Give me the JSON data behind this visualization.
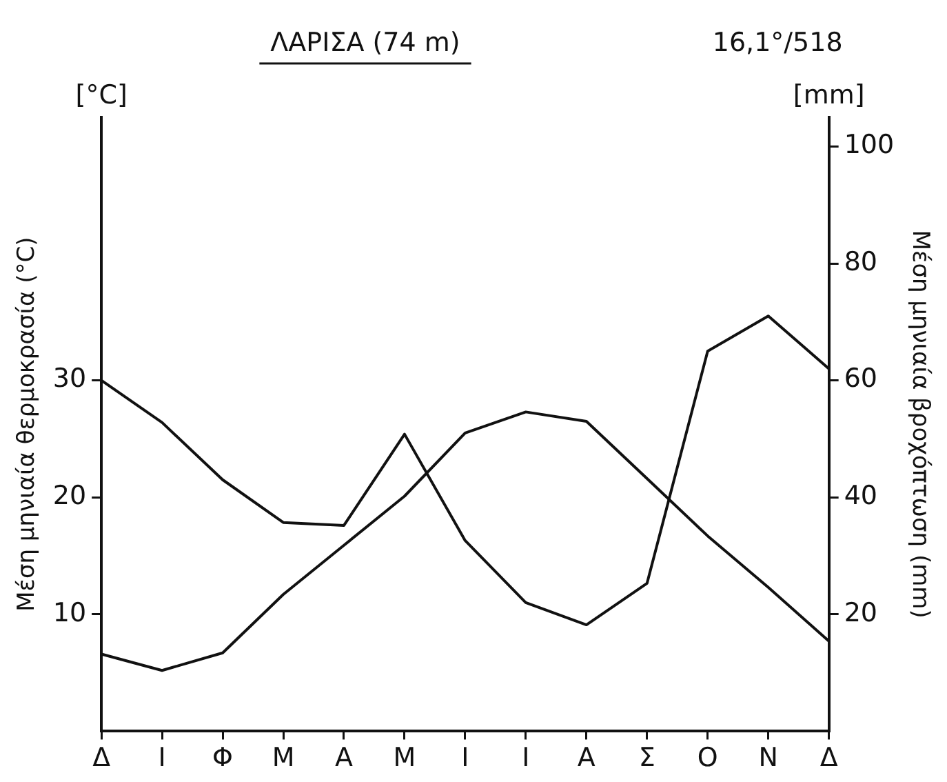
{
  "chart_data": {
    "type": "line",
    "title": "ΛΑΡΙΣΑ (74 m)",
    "ylabel": "Μέση μηνιαία θερμοκρασία (°C)",
    "y2label": "Μέση μηνιαία βροχόπτωση (mm)",
    "annotations": [
      "16,1°/518",
      "[°C]",
      "[mm]"
    ],
    "categories": [
      "Δ",
      "Ι",
      "Φ",
      "Μ",
      "Α",
      "Μ",
      "Ι",
      "Ι",
      "Α",
      "Σ",
      "Ο",
      "Ν",
      "Δ"
    ],
    "series": [
      {
        "color": "#111111",
        "values": [
          6.6,
          5.2,
          6.7,
          11.7,
          15.9,
          20.1,
          25.5,
          27.3,
          26.5,
          21.6,
          16.7,
          12.3,
          7.7
        ]
      },
      {
        "color": "#111111",
        "axis": "y2",
        "values": [
          60,
          52.8,
          43,
          35.7,
          35.2,
          50.8,
          32.6,
          22,
          18.2,
          25.3,
          65,
          71,
          62
        ]
      }
    ],
    "ylim": [
      0,
      52.5
    ],
    "yticks": [
      10,
      20,
      30
    ],
    "y2lim": [
      0,
      105
    ],
    "y2ticks": [
      20,
      40,
      60,
      80,
      100
    ],
    "grid": false,
    "legend": false,
    "marker": "none",
    "line_style": "solid"
  }
}
